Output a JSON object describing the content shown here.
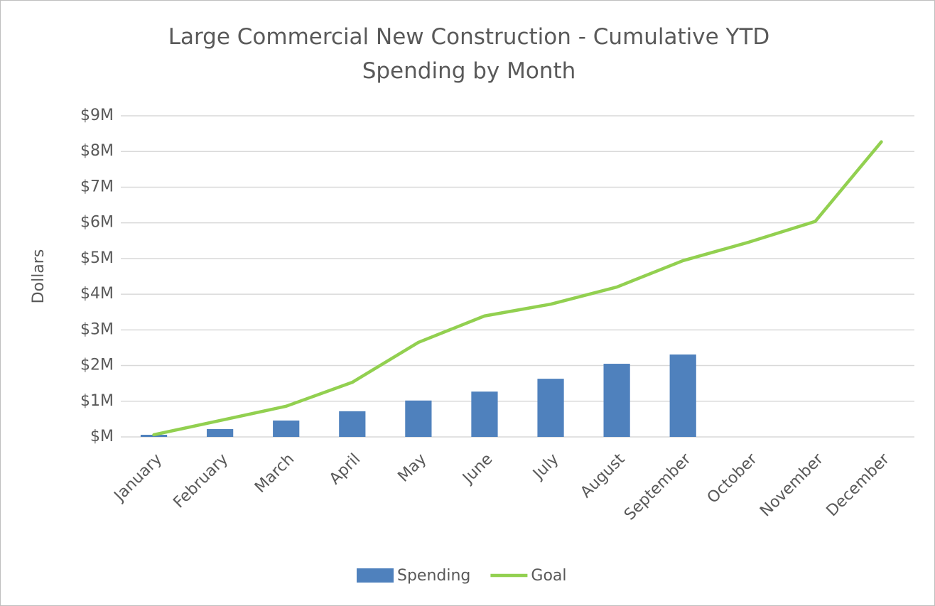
{
  "chart_data": {
    "type": "bar",
    "title": "Large Commercial New Construction - Cumulative YTD Spending by Month",
    "y_label": "Dollars",
    "categories": [
      "January",
      "February",
      "March",
      "April",
      "May",
      "June",
      "July",
      "August",
      "September",
      "October",
      "November",
      "December"
    ],
    "series": [
      {
        "name": "Spending",
        "type": "bar",
        "color": "#4f81bd",
        "values": [
          60000,
          220000,
          460000,
          720000,
          1020000,
          1270000,
          1630000,
          2050000,
          2310000,
          null,
          null,
          null
        ]
      },
      {
        "name": "Goal",
        "type": "line",
        "color": "#92d050",
        "values": [
          60000,
          460000,
          860000,
          1530000,
          2650000,
          3390000,
          3720000,
          4200000,
          4940000,
          5460000,
          6040000,
          8270000
        ]
      }
    ],
    "ylim": [
      0,
      9000000
    ],
    "yticks": [
      {
        "value": 0,
        "label": "$M"
      },
      {
        "value": 1000000,
        "label": "$1M"
      },
      {
        "value": 2000000,
        "label": "$2M"
      },
      {
        "value": 3000000,
        "label": "$3M"
      },
      {
        "value": 4000000,
        "label": "$4M"
      },
      {
        "value": 5000000,
        "label": "$5M"
      },
      {
        "value": 6000000,
        "label": "$6M"
      },
      {
        "value": 7000000,
        "label": "$7M"
      },
      {
        "value": 8000000,
        "label": "$8M"
      },
      {
        "value": 9000000,
        "label": "$9M"
      }
    ],
    "grid": true,
    "legend": "bottom"
  }
}
